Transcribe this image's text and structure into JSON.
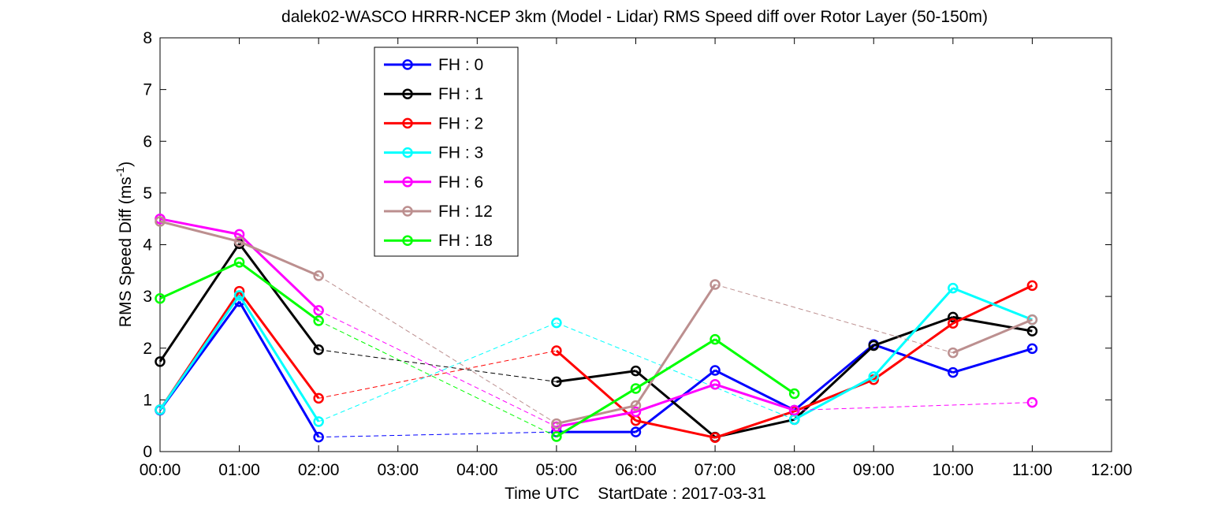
{
  "chart_data": {
    "type": "line",
    "title": "dalek02-WASCO HRRR-NCEP 3km (Model - Lidar) RMS Speed diff over Rotor Layer (50-150m)",
    "xlabel": "Time UTC    StartDate : 2017-03-31",
    "ylabel_main": "RMS Speed Diff (ms",
    "ylabel_sup": "-1",
    "ylabel_close": ")",
    "x_tick_labels": [
      "00:00",
      "01:00",
      "02:00",
      "03:00",
      "04:00",
      "05:00",
      "06:00",
      "07:00",
      "08:00",
      "09:00",
      "10:00",
      "11:00",
      "12:00"
    ],
    "y_tick_labels": [
      "0",
      "1",
      "2",
      "3",
      "4",
      "5",
      "6",
      "7",
      "8"
    ],
    "xlim": [
      0,
      12
    ],
    "ylim": [
      0,
      8
    ],
    "grid": false,
    "legend_position": "upper-left-center",
    "series": [
      {
        "name": "FH : 0",
        "color": "#0000ff",
        "x": [
          0,
          1,
          2,
          5,
          6,
          7,
          8,
          9,
          10,
          11
        ],
        "values": [
          0.8,
          2.9,
          0.28,
          0.38,
          0.38,
          1.57,
          0.8,
          2.07,
          1.53,
          1.99
        ]
      },
      {
        "name": "FH : 1",
        "color": "#000000",
        "x": [
          0,
          1,
          2,
          5,
          6,
          7,
          8,
          9,
          10,
          11
        ],
        "values": [
          1.74,
          4.02,
          1.97,
          1.35,
          1.56,
          0.28,
          0.62,
          2.05,
          2.6,
          2.33
        ]
      },
      {
        "name": "FH : 2",
        "color": "#ff0000",
        "x": [
          0,
          1,
          2,
          5,
          6,
          7,
          8,
          9,
          10,
          11
        ],
        "values": [
          0.81,
          3.1,
          1.03,
          1.95,
          0.6,
          0.27,
          0.78,
          1.39,
          2.48,
          3.21
        ]
      },
      {
        "name": "FH : 3",
        "color": "#00ffff",
        "x": [
          0,
          1,
          2,
          5,
          8,
          9,
          10,
          11
        ],
        "values": [
          0.81,
          3.02,
          0.58,
          2.49,
          0.62,
          1.45,
          3.16,
          2.55
        ]
      },
      {
        "name": "FH : 6",
        "color": "#ff00ff",
        "x": [
          0,
          1,
          2,
          5,
          6,
          7,
          8,
          11
        ],
        "values": [
          4.5,
          4.2,
          2.73,
          0.48,
          0.77,
          1.3,
          0.8,
          0.95
        ]
      },
      {
        "name": "FH : 12",
        "color": "#bc8f8f",
        "x": [
          0,
          1,
          2,
          5,
          6,
          7,
          10,
          11
        ],
        "values": [
          4.45,
          4.06,
          3.4,
          0.54,
          0.89,
          3.23,
          1.91,
          2.55
        ]
      },
      {
        "name": "FH : 18",
        "color": "#00ff00",
        "x": [
          0,
          1,
          2,
          5,
          6,
          7,
          8
        ],
        "values": [
          2.96,
          3.66,
          2.53,
          0.29,
          1.22,
          2.17,
          1.12
        ]
      }
    ]
  }
}
